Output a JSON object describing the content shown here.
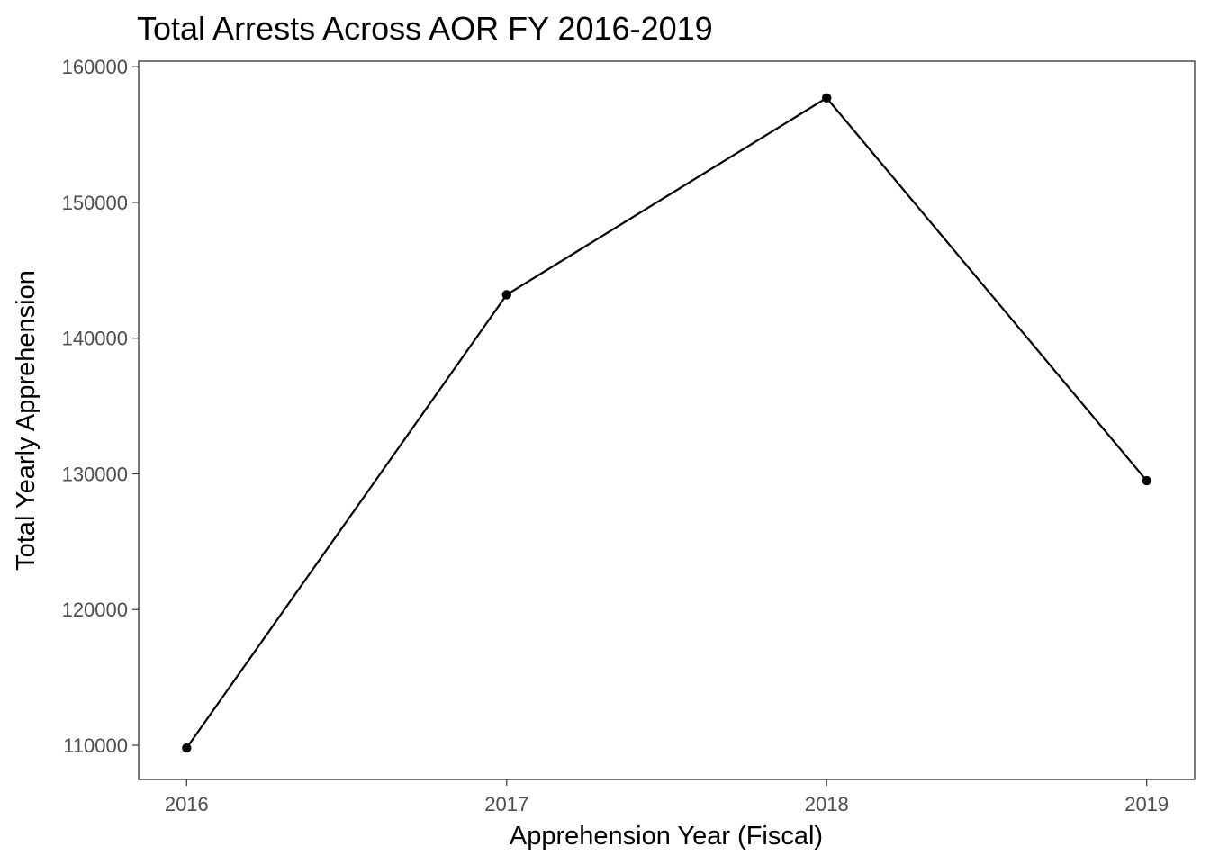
{
  "chart_data": {
    "type": "line",
    "title": "Total Arrests Across AOR FY 2016-2019",
    "xlabel": "Apprehension Year (Fiscal)",
    "ylabel": "Total Yearly Apprehension",
    "x": [
      2016,
      2017,
      2018,
      2019
    ],
    "x_tick_labels": [
      "2016",
      "2017",
      "2018",
      "2019"
    ],
    "xlim": [
      2015.85,
      2019.15
    ],
    "series": [
      {
        "values": [
          109800,
          143200,
          157700,
          129500
        ],
        "color": "#000000"
      }
    ],
    "y_ticks": [
      110000,
      120000,
      130000,
      140000,
      150000,
      160000
    ],
    "y_tick_labels": [
      "110000",
      "120000",
      "130000",
      "140000",
      "150000",
      "160000"
    ],
    "ylim": [
      107480,
      160410
    ],
    "grid": false,
    "legend": "none"
  }
}
